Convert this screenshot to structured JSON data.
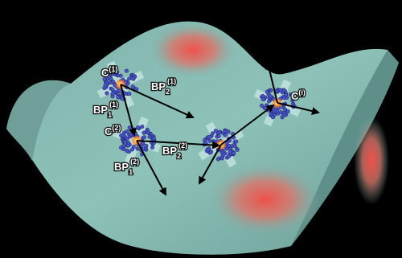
{
  "labels": [
    {
      "base": "C",
      "sup": "(1)"
    },
    {
      "base": "BP",
      "sub": "2",
      "sup": "(1)"
    },
    {
      "base": "BP",
      "sub": "1",
      "sup": "(1)"
    },
    {
      "base": "C",
      "sup": "(2)"
    },
    {
      "base": "BP",
      "sub": "2",
      "sup": "(2)"
    },
    {
      "base": "BP",
      "sub": "1",
      "sup": "(2)"
    },
    {
      "base": "C",
      "sup": "(i)"
    }
  ]
}
